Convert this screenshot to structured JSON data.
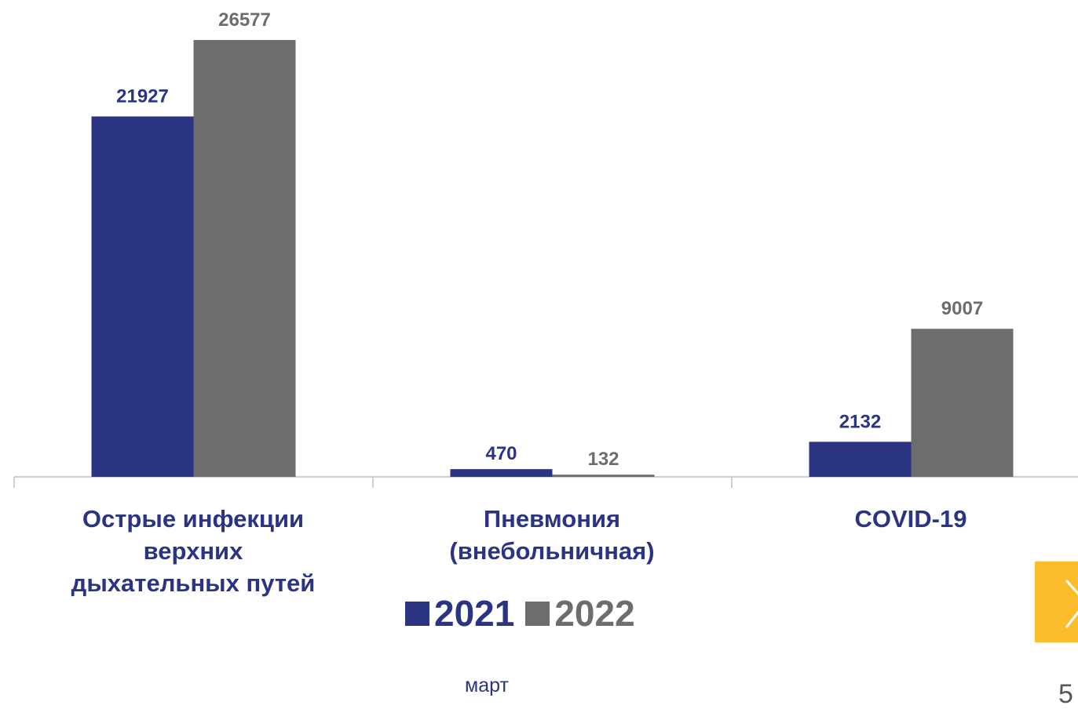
{
  "chart_data": {
    "type": "bar",
    "categories": [
      "Острые инфекции\nверхних\nдыхательных путей",
      "Пневмония\n(внебольничная)",
      "COVID-19"
    ],
    "series": [
      {
        "name": "2021",
        "values": [
          21927,
          470,
          2132
        ],
        "color": "#2b3483"
      },
      {
        "name": "2022",
        "values": [
          26577,
          132,
          9007
        ],
        "color": "#6d6d6d"
      }
    ],
    "ylim": [
      0,
      26577
    ],
    "grid": false,
    "legend_position": "bottom-center",
    "xlabel": "март",
    "category_label_color": "#2b3483",
    "axis_color": "#bfbfbf"
  },
  "navigation": {
    "next_icon": "chevron-right-icon",
    "next_button_color": "#fbbd2c",
    "page_number": "5",
    "page_number_color": "#595959"
  }
}
